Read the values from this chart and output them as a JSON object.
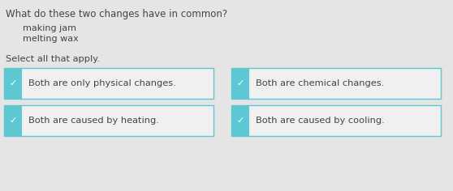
{
  "background_color": "#e5e5e5",
  "question": "What do these two changes have in common?",
  "items": [
    "making jam",
    "melting wax"
  ],
  "instruction": "Select all that apply.",
  "options": [
    [
      "Both are only physical changes.",
      "Both are chemical changes."
    ],
    [
      "Both are caused by heating.",
      "Both are caused by cooling."
    ]
  ],
  "check_color": "#5bc8d4",
  "box_border_color": "#5bc8d4",
  "box_bg_color": "#f0f0f0",
  "text_color": "#444444",
  "question_fontsize": 8.5,
  "item_fontsize": 8,
  "option_fontsize": 8.2,
  "instruction_fontsize": 8.2
}
